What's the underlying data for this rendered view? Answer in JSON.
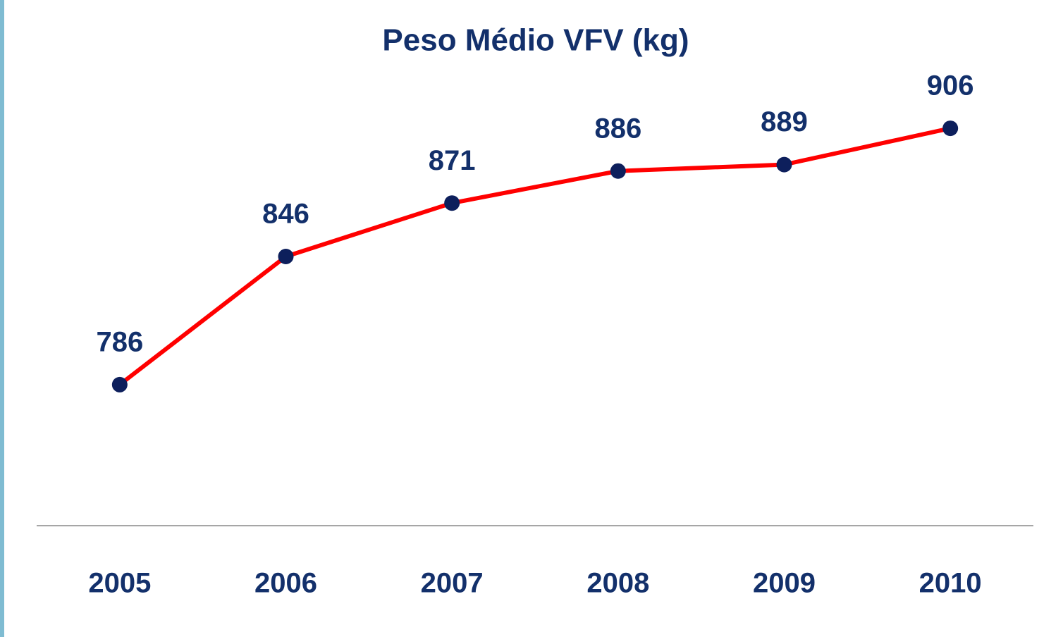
{
  "chart_data": {
    "type": "line",
    "title": "Peso Médio VFV (kg)",
    "categories": [
      "2005",
      "2006",
      "2007",
      "2008",
      "2009",
      "2010"
    ],
    "series": [
      {
        "name": "Peso Médio VFV",
        "color": "#ff0000",
        "marker_color": "#0d1f5c",
        "values": [
          786,
          846,
          871,
          886,
          889,
          906
        ]
      }
    ],
    "ylim": [
      720,
      940
    ],
    "data_labels": true
  }
}
